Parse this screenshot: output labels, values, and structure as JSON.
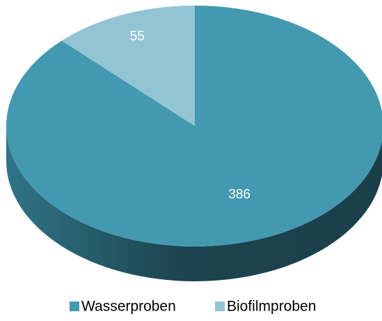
{
  "chart_data": {
    "type": "pie",
    "categories": [
      "Wasserproben",
      "Biofilmproben"
    ],
    "values": [
      386,
      55
    ],
    "colors": [
      "#4399b0",
      "#93c4d4"
    ],
    "legend": "bottom"
  }
}
